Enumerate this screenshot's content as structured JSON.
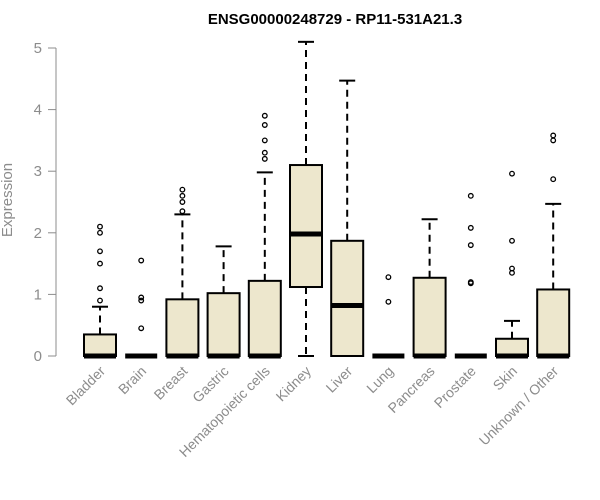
{
  "chart_data": {
    "type": "box",
    "title": "ENSG00000248729 - RP11-531A21.3",
    "ylabel": "Expression",
    "xlabel": "",
    "ylim": [
      0,
      5.2
    ],
    "yticks": [
      0,
      1,
      2,
      3,
      4,
      5
    ],
    "box_fill": "#ede7cd",
    "categories": [
      "Bladder",
      "Brain",
      "Breast",
      "Gastric",
      "Hematopoietic cells",
      "Kidney",
      "Liver",
      "Lung",
      "Pancreas",
      "Prostate",
      "Skin",
      "Unknown / Other"
    ],
    "boxes": [
      {
        "min": 0,
        "q1": 0,
        "median": 0,
        "q3": 0.35,
        "max": 0.8,
        "outliers": [
          0.9,
          1.1,
          1.5,
          1.7,
          2.0,
          2.1
        ]
      },
      {
        "min": 0,
        "q1": 0,
        "median": 0,
        "q3": 0,
        "max": 0,
        "outliers": [
          0.45,
          0.9,
          0.95,
          1.55
        ]
      },
      {
        "min": 0,
        "q1": 0,
        "median": 0,
        "q3": 0.92,
        "max": 2.3,
        "outliers": [
          2.35,
          2.5,
          2.6,
          2.7
        ]
      },
      {
        "min": 0,
        "q1": 0,
        "median": 0,
        "q3": 1.02,
        "max": 1.78,
        "outliers": []
      },
      {
        "min": 0,
        "q1": 0,
        "median": 0,
        "q3": 1.22,
        "max": 2.98,
        "outliers": [
          3.2,
          3.3,
          3.5,
          3.75,
          3.9
        ]
      },
      {
        "min": 0,
        "q1": 1.12,
        "median": 1.98,
        "q3": 3.1,
        "max": 5.1,
        "outliers": []
      },
      {
        "min": 0,
        "q1": 0,
        "median": 0.82,
        "q3": 1.87,
        "max": 4.47,
        "outliers": []
      },
      {
        "min": 0,
        "q1": 0,
        "median": 0,
        "q3": 0,
        "max": 0,
        "outliers": [
          0.88,
          1.28
        ]
      },
      {
        "min": 0,
        "q1": 0,
        "median": 0,
        "q3": 1.27,
        "max": 2.22,
        "outliers": []
      },
      {
        "min": 0,
        "q1": 0,
        "median": 0,
        "q3": 0,
        "max": 0,
        "outliers": [
          1.18,
          1.2,
          1.8,
          2.08,
          2.6
        ]
      },
      {
        "min": 0,
        "q1": 0,
        "median": 0,
        "q3": 0.28,
        "max": 0.57,
        "outliers": [
          1.35,
          1.42,
          1.87,
          2.96
        ]
      },
      {
        "min": 0,
        "q1": 0,
        "median": 0,
        "q3": 1.08,
        "max": 2.47,
        "outliers": [
          2.87,
          3.5,
          3.58
        ]
      }
    ]
  }
}
